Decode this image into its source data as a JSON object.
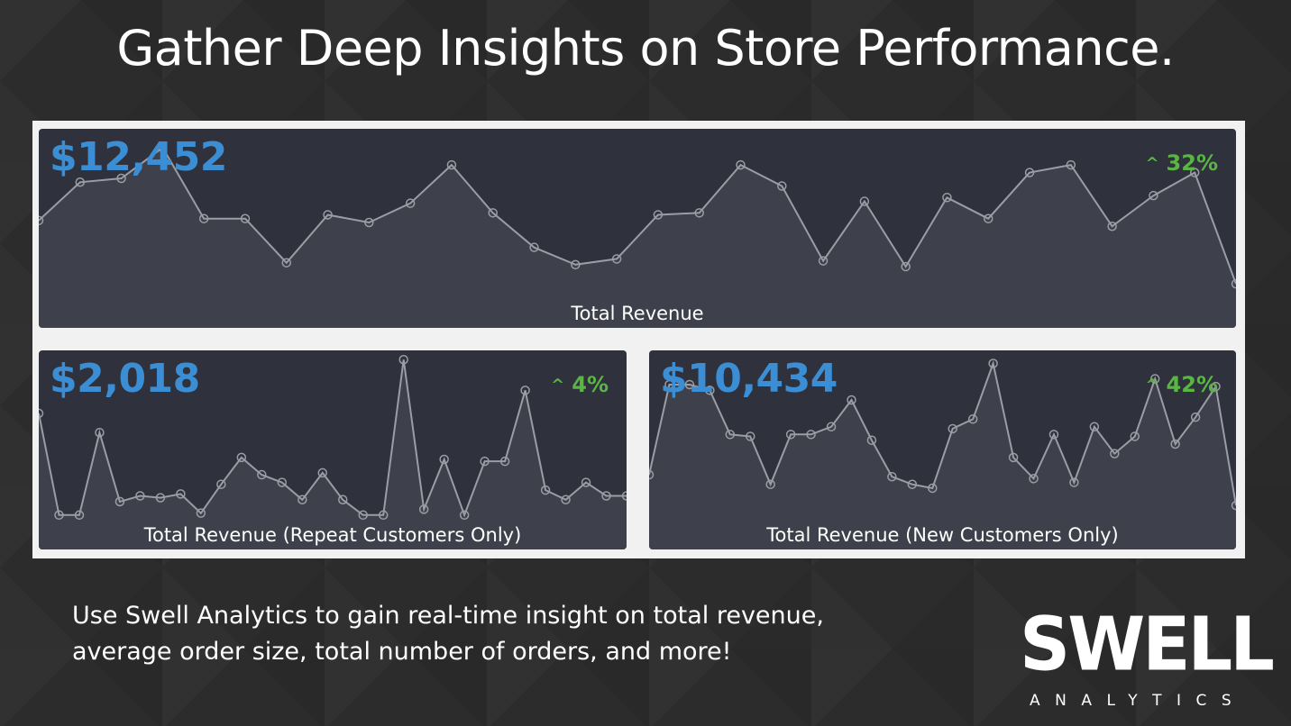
{
  "headline": "Gather Deep Insights on Store Performance.",
  "panels": {
    "total": {
      "amount": "$12,452",
      "change": "32%",
      "label": "Total Revenue",
      "line_color": "#9a9da4",
      "values": [
        0.55,
        0.75,
        0.77,
        0.93,
        0.56,
        0.56,
        0.33,
        0.58,
        0.54,
        0.64,
        0.84,
        0.59,
        0.41,
        0.32,
        0.35,
        0.58,
        0.59,
        0.84,
        0.73,
        0.34,
        0.65,
        0.31,
        0.67,
        0.56,
        0.8,
        0.84,
        0.52,
        0.68,
        0.8,
        0.22
      ]
    },
    "repeat": {
      "amount": "$2,018",
      "change": "4%",
      "label": "Total Revenue (Repeat Customers Only)",
      "line_color": "#9a9da4",
      "values": [
        0.7,
        0.17,
        0.17,
        0.6,
        0.24,
        0.27,
        0.26,
        0.28,
        0.18,
        0.33,
        0.47,
        0.38,
        0.34,
        0.25,
        0.39,
        0.25,
        0.17,
        0.17,
        0.98,
        0.2,
        0.46,
        0.17,
        0.45,
        0.45,
        0.82,
        0.3,
        0.25,
        0.34,
        0.27,
        0.27
      ]
    },
    "new_customers": {
      "amount": "$10,434",
      "change": "42%",
      "label": "Total Revenue (New Customers Only)",
      "line_color": "#9a9da4",
      "values": [
        0.38,
        0.85,
        0.85,
        0.82,
        0.59,
        0.58,
        0.33,
        0.59,
        0.59,
        0.63,
        0.77,
        0.56,
        0.37,
        0.33,
        0.31,
        0.62,
        0.67,
        0.96,
        0.47,
        0.36,
        0.59,
        0.34,
        0.63,
        0.49,
        0.58,
        0.88,
        0.54,
        0.68,
        0.84,
        0.22
      ]
    }
  },
  "tagline": {
    "line1": "Use Swell Analytics to gain real-time insight on total revenue,",
    "line2": "average order size, total number of orders, and more!"
  },
  "logo": {
    "word": "SWELL",
    "sub": "ANALYTICS"
  },
  "colors": {
    "amount": "#3b8ed3",
    "change": "#5ab544",
    "panel_bg": "#2f323d"
  },
  "icons": {
    "change": "caret-up-icon"
  }
}
